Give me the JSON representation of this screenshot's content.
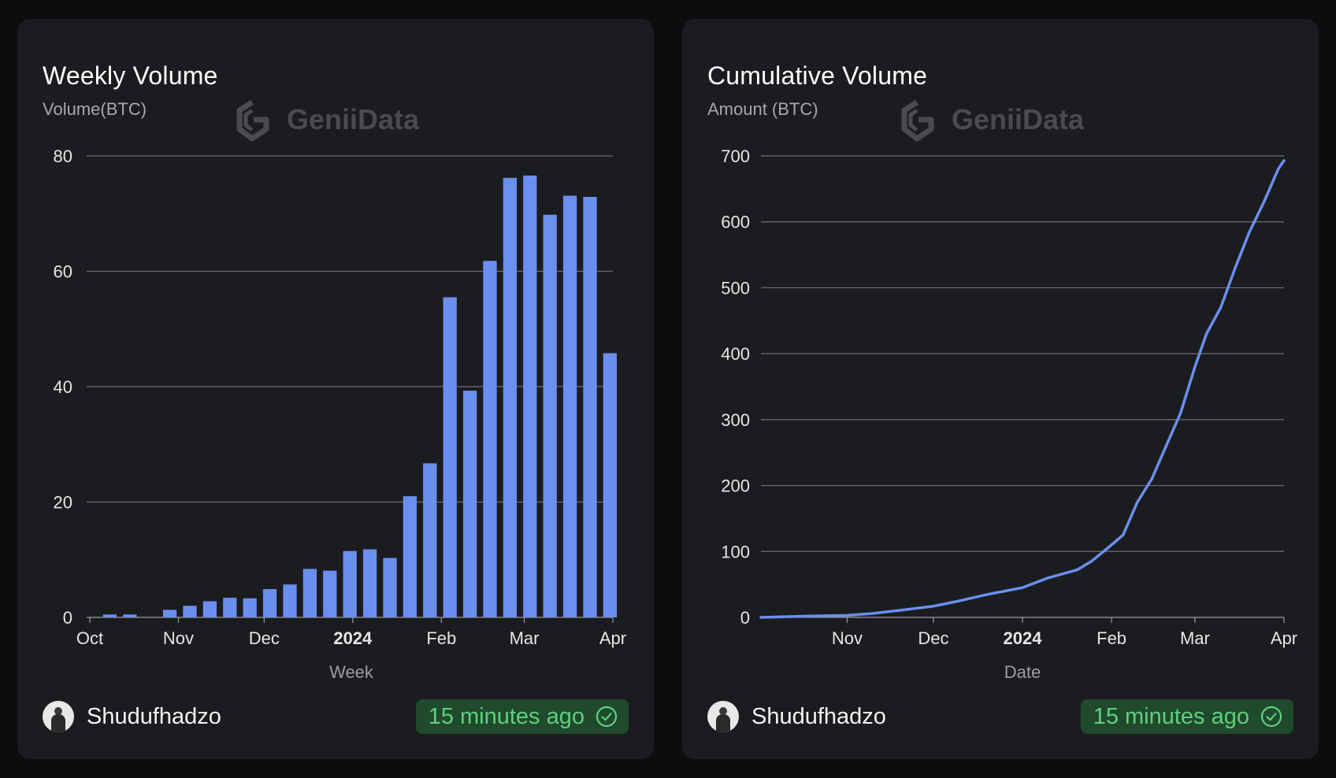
{
  "colors": {
    "accent": "#6b8fee",
    "badge_bg": "#1f4a2c",
    "badge_text": "#5fd07e",
    "grid": "#8a8a8a",
    "card_bg": "#1b1c1f"
  },
  "cards": [
    {
      "title": "Weekly Volume",
      "watermark": "GeniiData",
      "author": "Shudufhadzo",
      "updated": "15 minutes ago",
      "avatar_icon": "avatar-icon",
      "status_icon": "check-circle-icon"
    },
    {
      "title": "Cumulative Volume",
      "watermark": "GeniiData",
      "author": "Shudufhadzo",
      "updated": "15 minutes ago",
      "avatar_icon": "avatar-icon",
      "status_icon": "check-circle-icon"
    }
  ],
  "chart_data": [
    {
      "type": "bar",
      "ylabel": "Volume(BTC)",
      "xlabel": "Week",
      "ylim": [
        0,
        80
      ],
      "yticks": [
        "0",
        "20",
        "40",
        "60",
        "80"
      ],
      "xlim": [
        "2023-10-01",
        "2024-04-01"
      ],
      "x_tick_labels": [
        {
          "date": "2023-10-01",
          "label": "Oct"
        },
        {
          "date": "2023-11-01",
          "label": "Nov"
        },
        {
          "date": "2023-12-01",
          "label": "Dec"
        },
        {
          "date": "2024-01-01",
          "label": "2024",
          "bold": true
        },
        {
          "date": "2024-02-01",
          "label": "Feb"
        },
        {
          "date": "2024-03-01",
          "label": "Mar"
        },
        {
          "date": "2024-04-01",
          "label": "Apr"
        }
      ],
      "grid": true,
      "x": [
        "2023-10-08",
        "2023-10-15",
        "2023-10-22",
        "2023-10-29",
        "2023-11-05",
        "2023-11-12",
        "2023-11-19",
        "2023-11-26",
        "2023-12-03",
        "2023-12-10",
        "2023-12-17",
        "2023-12-24",
        "2023-12-31",
        "2024-01-07",
        "2024-01-14",
        "2024-01-21",
        "2024-01-28",
        "2024-02-04",
        "2024-02-11",
        "2024-02-18",
        "2024-02-25",
        "2024-03-03",
        "2024-03-10",
        "2024-03-17",
        "2024-03-24",
        "2024-03-31"
      ],
      "values": [
        0.5,
        0.5,
        0,
        1.3,
        2.0,
        2.8,
        3.4,
        3.3,
        4.9,
        5.7,
        8.4,
        8.1,
        11.5,
        11.8,
        10.3,
        21.0,
        26.7,
        55.5,
        39.3,
        61.8,
        76.2,
        76.6,
        69.8,
        73.1,
        72.9,
        45.8
      ]
    },
    {
      "type": "line",
      "ylabel": "Amount (BTC)",
      "xlabel": "Date",
      "ylim": [
        0,
        700
      ],
      "yticks": [
        "0",
        "100",
        "200",
        "300",
        "400",
        "500",
        "600",
        "700"
      ],
      "xlim": [
        "2023-10-02",
        "2024-04-01"
      ],
      "x_tick_labels": [
        {
          "date": "2023-11-01",
          "label": "Nov"
        },
        {
          "date": "2023-12-01",
          "label": "Dec"
        },
        {
          "date": "2024-01-01",
          "label": "2024",
          "bold": true
        },
        {
          "date": "2024-02-01",
          "label": "Feb"
        },
        {
          "date": "2024-03-01",
          "label": "Mar"
        },
        {
          "date": "2024-04-01",
          "label": "Apr"
        }
      ],
      "grid": true,
      "x": [
        "2023-10-02",
        "2023-10-10",
        "2023-10-20",
        "2023-11-01",
        "2023-11-10",
        "2023-11-20",
        "2023-12-01",
        "2023-12-10",
        "2023-12-20",
        "2024-01-01",
        "2024-01-10",
        "2024-01-20",
        "2024-01-25",
        "2024-02-01",
        "2024-02-05",
        "2024-02-10",
        "2024-02-15",
        "2024-02-20",
        "2024-02-25",
        "2024-03-01",
        "2024-03-05",
        "2024-03-10",
        "2024-03-15",
        "2024-03-20",
        "2024-03-25",
        "2024-03-30",
        "2024-04-01"
      ],
      "values": [
        0,
        1,
        2,
        3,
        6,
        11,
        17,
        25,
        35,
        45,
        60,
        72,
        85,
        110,
        125,
        175,
        210,
        260,
        310,
        380,
        430,
        470,
        530,
        585,
        630,
        680,
        693
      ]
    }
  ]
}
